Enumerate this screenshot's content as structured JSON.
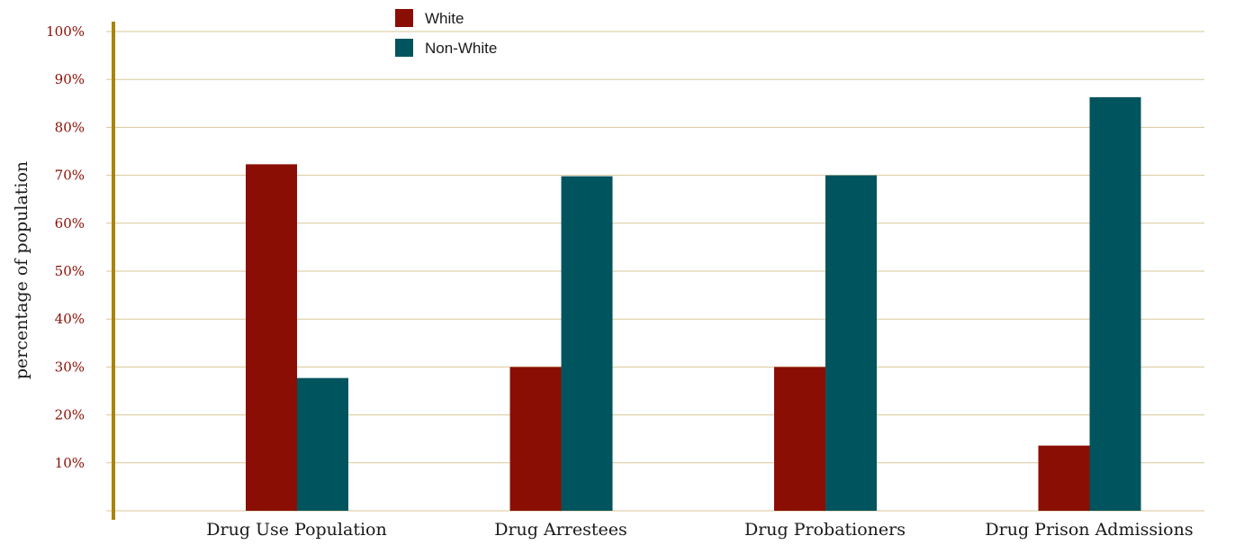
{
  "chart_data": {
    "type": "bar",
    "title": "",
    "xlabel": "",
    "ylabel": "percentage of population",
    "categories": [
      "Drug Use Population",
      "Drug Arrestees",
      "Drug Probationers",
      "Drug Prison Admissions"
    ],
    "series": [
      {
        "name": "White",
        "color": "#8b0e04",
        "values": [
          72.3,
          30,
          30,
          13.6
        ]
      },
      {
        "name": "Non-White",
        "color": "#00545e",
        "values": [
          27.7,
          69.8,
          70,
          86.3
        ]
      }
    ],
    "y_ticks": [
      {
        "value": 10,
        "label": "10%"
      },
      {
        "value": 20,
        "label": "20%"
      },
      {
        "value": 30,
        "label": "30%"
      },
      {
        "value": 40,
        "label": "40%"
      },
      {
        "value": 50,
        "label": "50%"
      },
      {
        "value": 60,
        "label": "60%"
      },
      {
        "value": 70,
        "label": "70%"
      },
      {
        "value": 80,
        "label": "80%"
      },
      {
        "value": 90,
        "label": "90%"
      },
      {
        "value": 100,
        "label": "100%"
      }
    ],
    "ylim": [
      0,
      100
    ],
    "grid": true,
    "legend_position": "top-left",
    "colors": {
      "gridline": "#d8c79a",
      "axis": "#a8840a",
      "tick_label": "#8b0e04"
    }
  }
}
